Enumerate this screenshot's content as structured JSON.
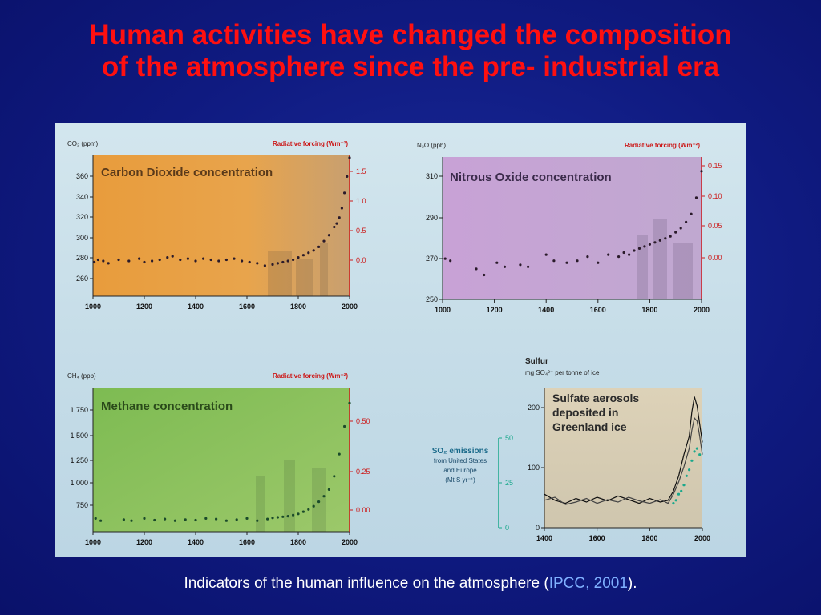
{
  "slide": {
    "title_line1": "Human activities have changed the composition",
    "title_line2": "of the atmosphere since the pre- industrial era",
    "caption_prefix": "Indicators of the human influence on the atmosphere (",
    "caption_link": "IPCC, 2001",
    "caption_suffix": ")."
  },
  "colors": {
    "co2_bg": "#e8a448",
    "n2o_bg": "#c7a6d4",
    "ch4_bg": "#8cc25a",
    "sulfur_bg": "#d9cfb6",
    "red_axis": "#cc1a1a",
    "teal_axis": "#1aa88c",
    "dots": "#2a1a2a"
  },
  "chart_data": [
    {
      "type": "scatter",
      "panel": "co2",
      "title": "Carbon Dioxide concentration",
      "ylabel_left": "CO₂ (ppm)",
      "ylabel_right": "Radiative forcing (Wm⁻²)",
      "xlim": [
        1000,
        2000
      ],
      "ylim": [
        250,
        370
      ],
      "xticks": [
        "1000",
        "1200",
        "1400",
        "1600",
        "1800",
        "2000"
      ],
      "yticks": [
        "360",
        "340",
        "320",
        "300",
        "280",
        "260"
      ],
      "yticks_right": [
        "1.5",
        "1.0",
        "0.5",
        "0.0"
      ],
      "x": [
        1005,
        1020,
        1040,
        1060,
        1100,
        1140,
        1180,
        1200,
        1230,
        1260,
        1290,
        1310,
        1340,
        1370,
        1400,
        1430,
        1460,
        1490,
        1520,
        1550,
        1580,
        1610,
        1640,
        1670,
        1700,
        1720,
        1740,
        1760,
        1780,
        1800,
        1820,
        1840,
        1860,
        1880,
        1900,
        1920,
        1940,
        1950,
        1960,
        1970,
        1980,
        1990,
        2000
      ],
      "y": [
        279,
        281,
        280,
        278,
        281,
        280,
        282,
        279,
        280,
        281,
        283,
        284,
        281,
        282,
        280,
        282,
        281,
        280,
        281,
        282,
        280,
        279,
        278,
        276,
        277,
        278,
        279,
        280,
        281,
        283,
        285,
        287,
        289,
        292,
        297,
        302,
        309,
        312,
        317,
        325,
        338,
        352,
        368
      ]
    },
    {
      "type": "scatter",
      "panel": "n2o",
      "title": "Nitrous Oxide concentration",
      "ylabel_left": "N₂O (ppb)",
      "ylabel_right": "Radiative forcing (Wm⁻²)",
      "xlim": [
        1000,
        2000
      ],
      "ylim": [
        250,
        320
      ],
      "xticks": [
        "1000",
        "1200",
        "1400",
        "1600",
        "1800",
        "2000"
      ],
      "yticks": [
        "310",
        "290",
        "270",
        "250"
      ],
      "yticks_right": [
        "0.15",
        "0.10",
        "0.05",
        "0.00"
      ],
      "x": [
        1010,
        1030,
        1130,
        1160,
        1210,
        1240,
        1300,
        1330,
        1400,
        1430,
        1480,
        1520,
        1560,
        1600,
        1640,
        1680,
        1700,
        1720,
        1740,
        1760,
        1780,
        1800,
        1820,
        1840,
        1860,
        1880,
        1900,
        1920,
        1940,
        1960,
        1980,
        2000
      ],
      "y": [
        270,
        269,
        265,
        262,
        268,
        266,
        267,
        266,
        272,
        269,
        268,
        269,
        271,
        268,
        272,
        271,
        273,
        272,
        274,
        275,
        276,
        277,
        278,
        279,
        280,
        281,
        283,
        285,
        288,
        292,
        300,
        313
      ]
    },
    {
      "type": "scatter",
      "panel": "ch4",
      "title": "Methane concentration",
      "ylabel_left": "CH₄ (ppb)",
      "ylabel_right": "Radiative forcing (Wm⁻²)",
      "xlim": [
        1000,
        2000
      ],
      "ylim": [
        600,
        1900
      ],
      "xticks": [
        "1000",
        "1200",
        "1400",
        "1600",
        "1800",
        "2000"
      ],
      "yticks": [
        "1 750",
        "1 500",
        "1 250",
        "1 000",
        "750"
      ],
      "yticks_right": [
        "0.50",
        "0.25",
        "0.00"
      ],
      "x": [
        1010,
        1030,
        1120,
        1150,
        1200,
        1240,
        1280,
        1320,
        1360,
        1400,
        1440,
        1480,
        1520,
        1560,
        1600,
        1640,
        1680,
        1700,
        1720,
        1740,
        1760,
        1780,
        1800,
        1820,
        1840,
        1860,
        1880,
        1900,
        1920,
        1940,
        1960,
        1980,
        2000
      ],
      "y": [
        720,
        700,
        710,
        700,
        720,
        705,
        715,
        700,
        710,
        705,
        720,
        715,
        700,
        710,
        720,
        700,
        715,
        725,
        730,
        735,
        740,
        750,
        760,
        780,
        800,
        830,
        870,
        920,
        980,
        1100,
        1300,
        1550,
        1760
      ]
    },
    {
      "type": "line",
      "panel": "sulfur",
      "title": "Sulfate aerosols deposited in Greenland ice",
      "ylabel_left": "Sulfur",
      "ylabel_left_unit": "mg SO₄²⁻ per tonne of ice",
      "secondary_label_lines": [
        "SO₂ emissions",
        "from United States",
        "and Europe",
        "(Mt S yr⁻¹)"
      ],
      "xlim": [
        1400,
        2000
      ],
      "ylim": [
        0,
        230
      ],
      "xticks": [
        "1400",
        "1600",
        "1800",
        "2000"
      ],
      "yticks": [
        "200",
        "100",
        "0"
      ],
      "yticks_secondary": [
        "50",
        "25",
        "0"
      ],
      "series": [
        {
          "x": [
            1400,
            1440,
            1480,
            1520,
            1560,
            1600,
            1640,
            1680,
            1720,
            1760,
            1800,
            1840,
            1870,
            1890,
            1910,
            1930,
            1950,
            1960,
            1970,
            1980,
            1990,
            2000
          ],
          "y": [
            55,
            45,
            40,
            48,
            42,
            50,
            44,
            52,
            46,
            40,
            48,
            42,
            45,
            60,
            85,
            120,
            150,
            190,
            215,
            200,
            170,
            140
          ]
        },
        {
          "x": [
            1400,
            1440,
            1480,
            1520,
            1560,
            1600,
            1640,
            1680,
            1720,
            1760,
            1800,
            1840,
            1870,
            1890,
            1910,
            1930,
            1950,
            1960,
            1970,
            1980,
            1990,
            2000
          ],
          "y": [
            45,
            50,
            38,
            42,
            48,
            40,
            46,
            42,
            50,
            44,
            40,
            46,
            40,
            55,
            75,
            100,
            130,
            160,
            180,
            175,
            150,
            120
          ]
        },
        {
          "x": [
            1890,
            1900,
            1910,
            1920,
            1930,
            1940,
            1950,
            1960,
            1970,
            1980,
            1990
          ],
          "y": [
            40,
            45,
            55,
            60,
            70,
            85,
            95,
            110,
            125,
            130,
            120
          ]
        }
      ]
    }
  ]
}
